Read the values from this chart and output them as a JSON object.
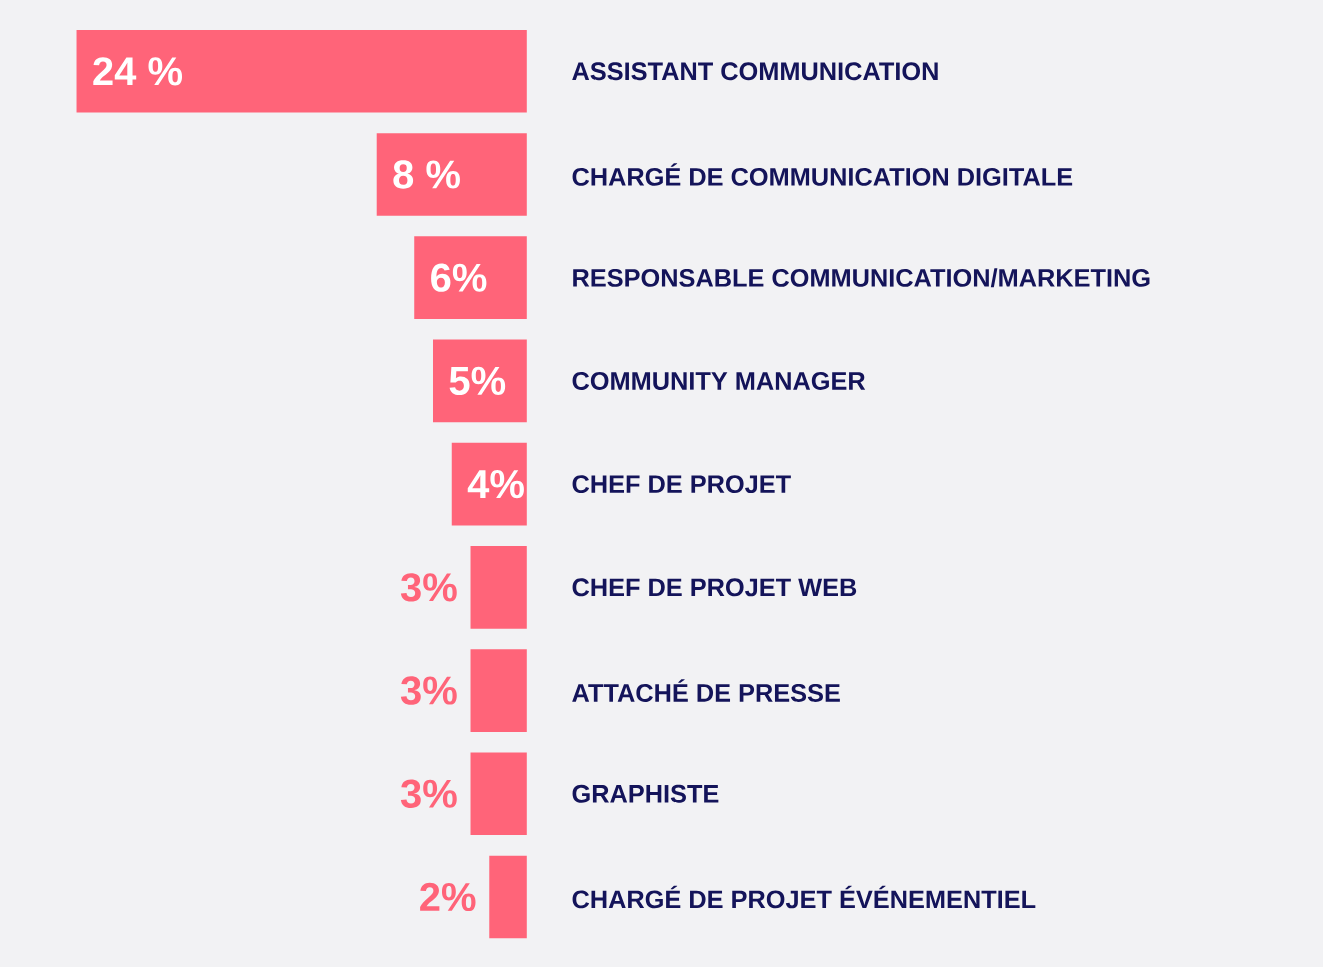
{
  "chart_data": {
    "type": "bar",
    "orientation": "horizontal",
    "categories": [
      "ASSISTANT COMMUNICATION",
      "CHARGÉ DE COMMUNICATION DIGITALE",
      "RESPONSABLE COMMUNICATION/MARKETING",
      "COMMUNITY MANAGER",
      "CHEF DE PROJET",
      "CHEF DE PROJET WEB",
      "ATTACHÉ DE PRESSE",
      "GRAPHISTE",
      "CHARGÉ DE PROJET ÉVÉNEMENTIEL"
    ],
    "values": [
      24,
      8,
      6,
      5,
      4,
      3,
      3,
      3,
      2
    ],
    "value_labels": [
      "24 %",
      "8 %",
      "6%",
      "5%",
      "4%",
      "3%",
      "3%",
      "3%",
      "2%"
    ],
    "color": "#ff6479"
  }
}
